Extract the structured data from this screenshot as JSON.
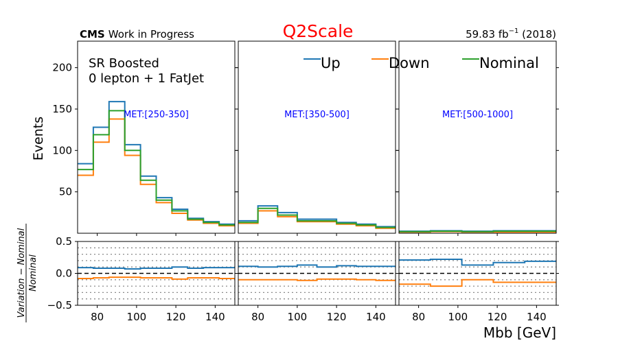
{
  "header": {
    "title": "Q2Scale",
    "title_color": "#ff0000",
    "cms": "CMS",
    "subtitle": "Work in Progress",
    "lumi_value": "59.83 fb",
    "lumi_exp": "−1",
    "lumi_year": " (2018)"
  },
  "annotation": {
    "line1": "SR Boosted",
    "line2": "0 lepton + 1 FatJet"
  },
  "colors": {
    "Up": "#1f77b4",
    "Down": "#ff7f0e",
    "Nominal": "#2ca02c",
    "met_label": "#0000ff"
  },
  "chart_data": {
    "type": "line",
    "style": "step-histogram",
    "ylabel": "Events",
    "ratio_ylabel_num": "Variation − Nominal",
    "ratio_ylabel_den": "Nominal",
    "xlabel": "Mbb [GeV]",
    "xlim": [
      70,
      150
    ],
    "ylim": [
      0,
      232
    ],
    "ratio_ylim": [
      -0.5,
      0.5
    ],
    "xticks": [
      80,
      100,
      120,
      140
    ],
    "yticks": [
      50,
      100,
      150,
      200
    ],
    "ratio_yticks": [
      -0.5,
      0.0,
      0.5
    ],
    "ratio_gridlines": [
      -0.4,
      -0.3,
      -0.2,
      -0.1,
      0.1,
      0.2,
      0.3,
      0.4
    ],
    "legend": {
      "position": "top-right",
      "entries": [
        "Up",
        "Down",
        "Nominal"
      ]
    },
    "panels": [
      {
        "label": "MET:[250-350]",
        "bin_edges": [
          70,
          78,
          86,
          94,
          102,
          110,
          118,
          126,
          134,
          142,
          150
        ],
        "series": [
          {
            "name": "Up",
            "values": [
              84,
              128,
              159,
              107,
              69,
              43,
              29,
              18,
              14,
              11
            ]
          },
          {
            "name": "Down",
            "values": [
              70,
              110,
              138,
              94,
              59,
              37,
              24,
              16,
              12,
              9
            ]
          },
          {
            "name": "Nominal",
            "values": [
              77,
              119,
              148,
              100,
              64,
              40,
              27,
              17,
              13,
              10
            ]
          }
        ],
        "ratio": [
          {
            "name": "Up",
            "values": [
              0.09,
              0.08,
              0.08,
              0.07,
              0.08,
              0.08,
              0.1,
              0.08,
              0.09,
              0.09
            ]
          },
          {
            "name": "Down",
            "values": [
              -0.08,
              -0.07,
              -0.06,
              -0.06,
              -0.07,
              -0.07,
              -0.09,
              -0.07,
              -0.07,
              -0.08
            ]
          }
        ]
      },
      {
        "label": "MET:[350-500]",
        "bin_edges": [
          70,
          80,
          90,
          100,
          110,
          120,
          130,
          140,
          150
        ],
        "series": [
          {
            "name": "Up",
            "values": [
              15,
              33,
              25,
              17,
              17,
              13,
              11,
              8
            ]
          },
          {
            "name": "Down",
            "values": [
              12,
              27,
              20,
              14,
              14,
              11,
              9,
              6
            ]
          },
          {
            "name": "Nominal",
            "values": [
              13,
              30,
              22,
              15,
              15,
              12,
              10,
              7
            ]
          }
        ],
        "ratio": [
          {
            "name": "Up",
            "values": [
              0.11,
              0.1,
              0.11,
              0.13,
              0.1,
              0.12,
              0.11,
              0.11
            ]
          },
          {
            "name": "Down",
            "values": [
              -0.1,
              -0.1,
              -0.1,
              -0.11,
              -0.09,
              -0.09,
              -0.1,
              -0.11
            ]
          }
        ]
      },
      {
        "label": "MET:[500-1000]",
        "bin_edges": [
          70,
          86,
          102,
          118,
          134,
          150
        ],
        "series": [
          {
            "name": "Up",
            "values": [
              2.5,
              3.0,
              2.5,
              3.0,
              3.0
            ]
          },
          {
            "name": "Down",
            "values": [
              1.5,
              2.0,
              1.5,
              1.5,
              1.5
            ]
          },
          {
            "name": "Nominal",
            "values": [
              2.0,
              2.5,
              2.0,
              2.5,
              2.5
            ]
          }
        ],
        "ratio": [
          {
            "name": "Up",
            "values": [
              0.21,
              0.22,
              0.13,
              0.17,
              0.19
            ]
          },
          {
            "name": "Down",
            "values": [
              -0.17,
              -0.2,
              -0.1,
              -0.14,
              -0.14
            ]
          }
        ]
      }
    ]
  }
}
